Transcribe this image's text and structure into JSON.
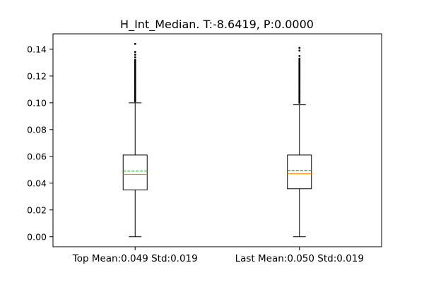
{
  "chart_data": {
    "type": "box",
    "title": "H_Int_Median. T:-8.6419, P:0.0000",
    "categories": [
      "Top Mean:0.049 Std:0.019",
      "Last Mean:0.050 Std:0.019"
    ],
    "ylim": [
      -0.0075,
      0.1515
    ],
    "yticks": [
      0.0,
      0.02,
      0.04,
      0.06,
      0.08,
      0.1,
      0.12,
      0.14
    ],
    "ytick_labels": [
      "0.00",
      "0.02",
      "0.04",
      "0.06",
      "0.08",
      "0.10",
      "0.12",
      "0.14"
    ],
    "grid": false,
    "boxes": [
      {
        "whisker_low": 0.0,
        "q1": 0.035,
        "median": 0.0465,
        "mean": 0.049,
        "q3": 0.061,
        "whisker_high": 0.1,
        "outliers": [
          0.101,
          0.102,
          0.103,
          0.104,
          0.105,
          0.106,
          0.107,
          0.108,
          0.109,
          0.11,
          0.111,
          0.112,
          0.113,
          0.114,
          0.115,
          0.116,
          0.117,
          0.118,
          0.119,
          0.12,
          0.121,
          0.122,
          0.123,
          0.124,
          0.125,
          0.126,
          0.127,
          0.128,
          0.129,
          0.13,
          0.131,
          0.132,
          0.134,
          0.136,
          0.138,
          0.144
        ]
      },
      {
        "whisker_low": 0.0,
        "q1": 0.0358,
        "median": 0.047,
        "mean": 0.0495,
        "q3": 0.061,
        "whisker_high": 0.0985,
        "outliers": [
          0.1,
          0.101,
          0.102,
          0.103,
          0.104,
          0.105,
          0.106,
          0.107,
          0.108,
          0.109,
          0.11,
          0.111,
          0.112,
          0.113,
          0.114,
          0.115,
          0.116,
          0.117,
          0.118,
          0.119,
          0.12,
          0.121,
          0.122,
          0.123,
          0.124,
          0.125,
          0.126,
          0.127,
          0.128,
          0.129,
          0.13,
          0.131,
          0.132,
          0.133,
          0.135,
          0.139,
          0.141
        ]
      }
    ],
    "colors": {
      "box": "#000000",
      "median": "#ff7f0e",
      "mean": "#2ca02c",
      "outlier": "#000000"
    }
  }
}
